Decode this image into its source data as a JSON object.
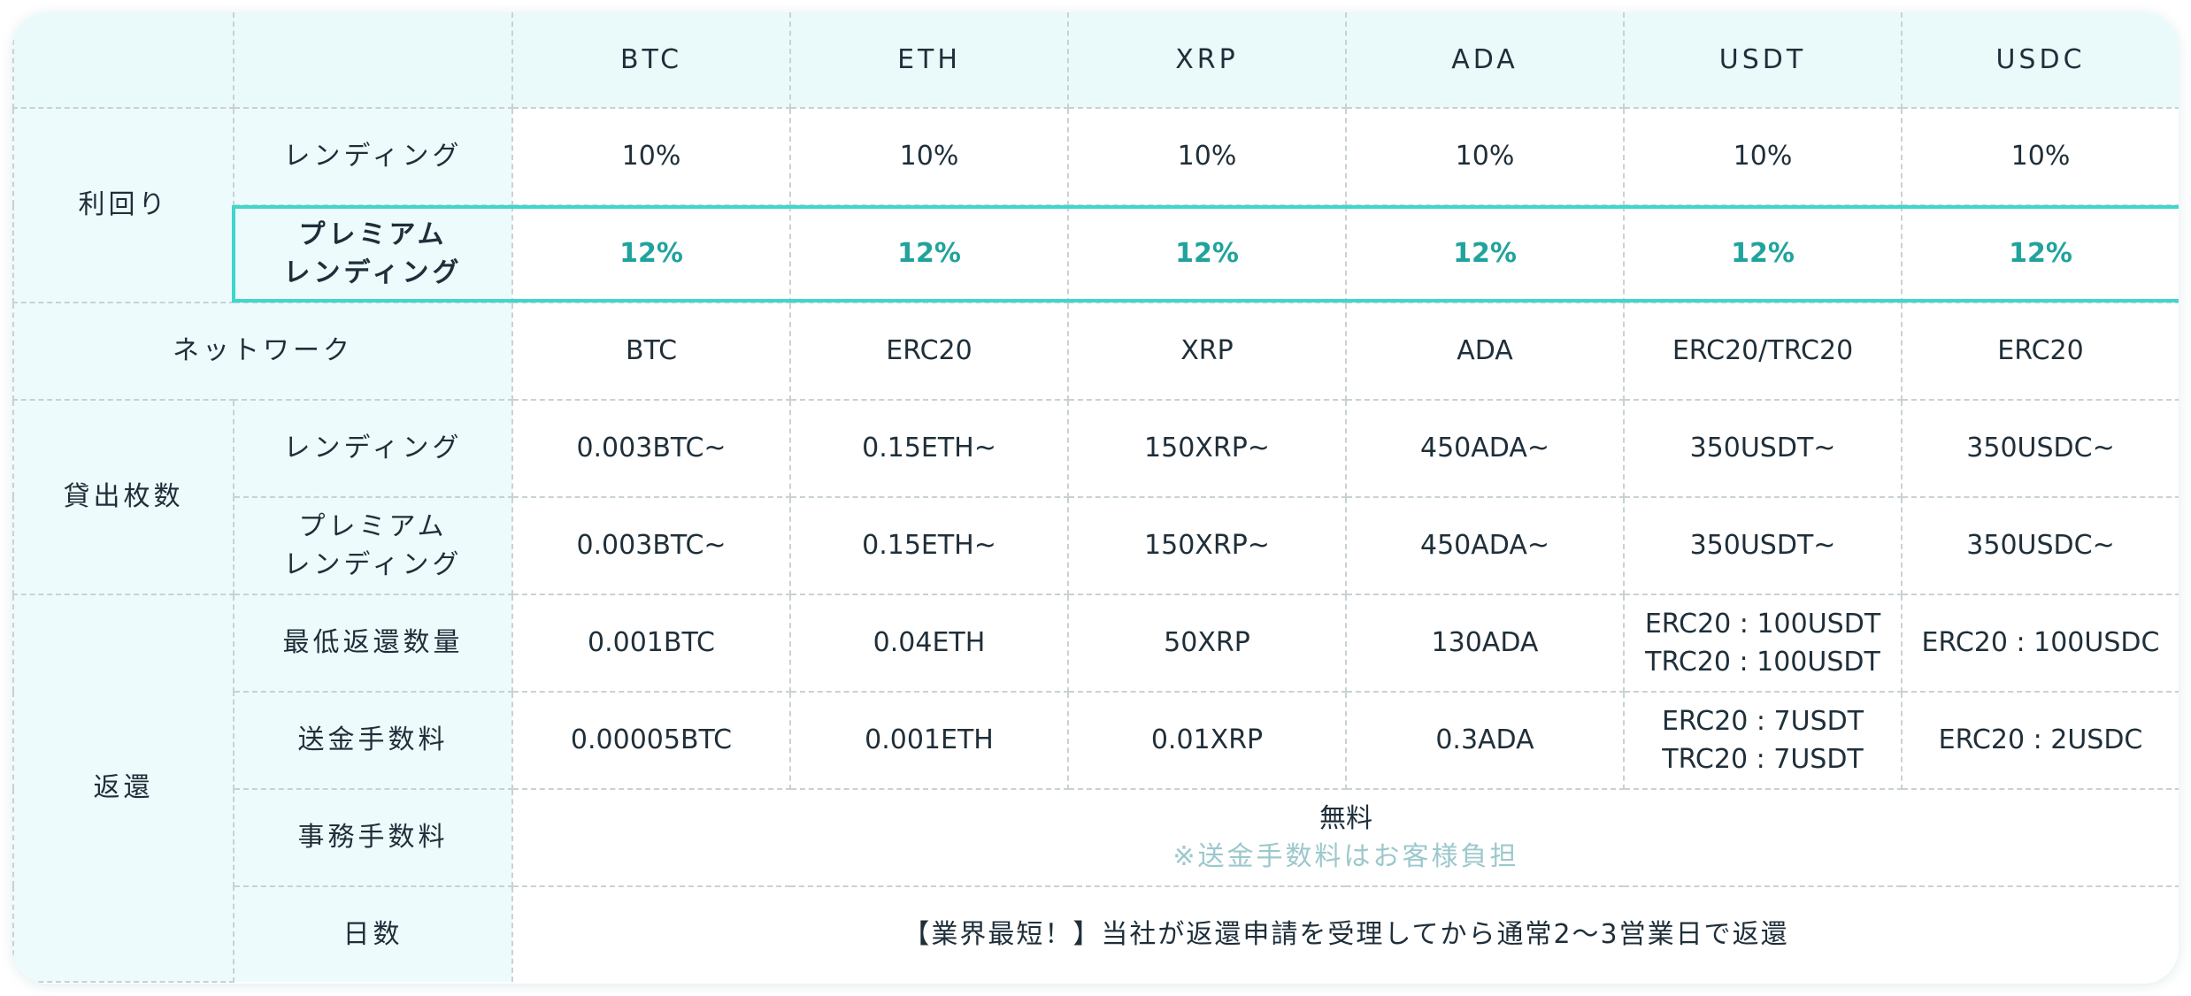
{
  "columns": [
    "BTC",
    "ETH",
    "XRP",
    "ADA",
    "USDT",
    "USDC"
  ],
  "sections": {
    "yield": "利回り",
    "network": "ネットワーク",
    "lending_amount": "貸出枚数",
    "return": "返還"
  },
  "sub": {
    "lending": "レンディング",
    "premium_line1": "プレミアム",
    "premium_line2": "レンディング",
    "min_return": "最低返還数量",
    "transfer_fee": "送金手数料",
    "admin_fee": "事務手数料",
    "days": "日数"
  },
  "yield_lending": [
    "10%",
    "10%",
    "10%",
    "10%",
    "10%",
    "10%"
  ],
  "yield_premium": [
    "12%",
    "12%",
    "12%",
    "12%",
    "12%",
    "12%"
  ],
  "network": [
    "BTC",
    "ERC20",
    "XRP",
    "ADA",
    "ERC20/TRC20",
    "ERC20"
  ],
  "amount_lending": [
    "0.003BTC~",
    "0.15ETH~",
    "150XRP~",
    "450ADA~",
    "350USDT~",
    "350USDC~"
  ],
  "amount_premium": [
    "0.003BTC~",
    "0.15ETH~",
    "150XRP~",
    "450ADA~",
    "350USDT~",
    "350USDC~"
  ],
  "min_return": {
    "btc": "0.001BTC",
    "eth": "0.04ETH",
    "xrp": "50XRP",
    "ada": "130ADA",
    "usdt_1": "ERC20 : 100USDT",
    "usdt_2": "TRC20 : 100USDT",
    "usdc": "ERC20 : 100USDC"
  },
  "transfer_fee": {
    "btc": "0.00005BTC",
    "eth": "0.001ETH",
    "xrp": "0.01XRP",
    "ada": "0.3ADA",
    "usdt_1": "ERC20 : 7USDT",
    "usdt_2": "TRC20 : 7USDT",
    "usdc": "ERC20 : 2USDC"
  },
  "admin_fee": {
    "value": "無料",
    "note": "※送金手数料はお客様負担"
  },
  "days_value": "【業界最短！】当社が返還申請を受理してから通常2〜3営業日で返還",
  "colors": {
    "accent": "#21a39d",
    "highlight_border": "#3fd6cd",
    "label_bg": "#eefbfc",
    "note": "#9cc8cc"
  }
}
